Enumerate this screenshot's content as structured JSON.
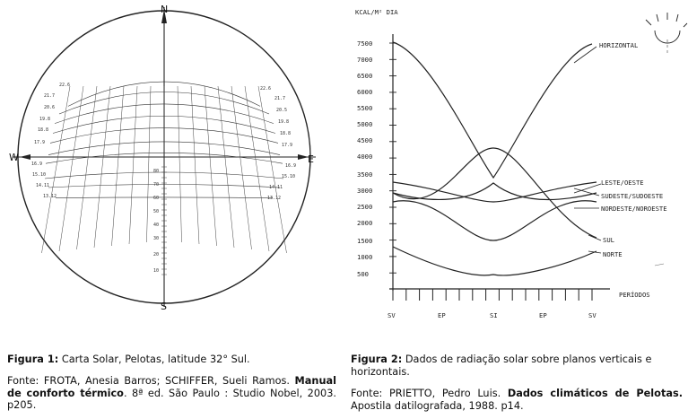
{
  "figure1": {
    "cardinals": {
      "n": "N",
      "s": "S",
      "w": "W",
      "e": "E"
    },
    "left_labels": [
      "22.6",
      "21.7",
      "20.6",
      "19.8",
      "18.8",
      "17.9",
      "16.9",
      "15.10",
      "14.11",
      "13.12"
    ],
    "right_labels": [
      "22.6",
      "21.7",
      "20.5",
      "19.8",
      "18.8",
      "17.9",
      "16.9",
      "15.10",
      "14.11",
      "13.12"
    ],
    "scale_labels": [
      "80",
      "70",
      "60",
      "50",
      "40",
      "30",
      "20",
      "10"
    ],
    "caption_label": "Figura 1:",
    "caption_text": " Carta Solar, Pelotas, latitude 32° Sul.",
    "source_pre": "Fonte: FROTA, Anesia Barros; SCHIFFER, Sueli Ramos. ",
    "source_bold": "Manual de conforto térmico",
    "source_post": ". 8ª ed. São Paulo : Studio Nobel, 2003. p205."
  },
  "figure2": {
    "y_unit_label": "KCAL/M² DIA",
    "y_ticks": [
      "7500",
      "7000",
      "6500",
      "6000",
      "5500",
      "5000",
      "4500",
      "4000",
      "3500",
      "3000",
      "2500",
      "2000",
      "1500",
      "1000",
      "500"
    ],
    "x_ticks": [
      "SV",
      "EP",
      "SI",
      "EP",
      "SV"
    ],
    "x_axis_label": "PERÍODOS",
    "series_labels": {
      "horizontal": "HORIZONTAL",
      "leste_oeste": "LESTE/OESTE",
      "sudeste_sudoeste": "SUDESTE/SUDOESTE",
      "nordeste_noroeste": "NORDESTE/NOROESTE",
      "sul": "SUL",
      "norte": "NORTE"
    },
    "caption_label": "Figura 2:",
    "caption_text": " Dados de radiação solar sobre planos verticais e horizontais.",
    "source_pre": "Fonte: PRIETTO, Pedro Luis. ",
    "source_bold": "Dados climáticos de Pelotas.",
    "source_post": " Apostila datilografada, 1988. p14."
  }
}
